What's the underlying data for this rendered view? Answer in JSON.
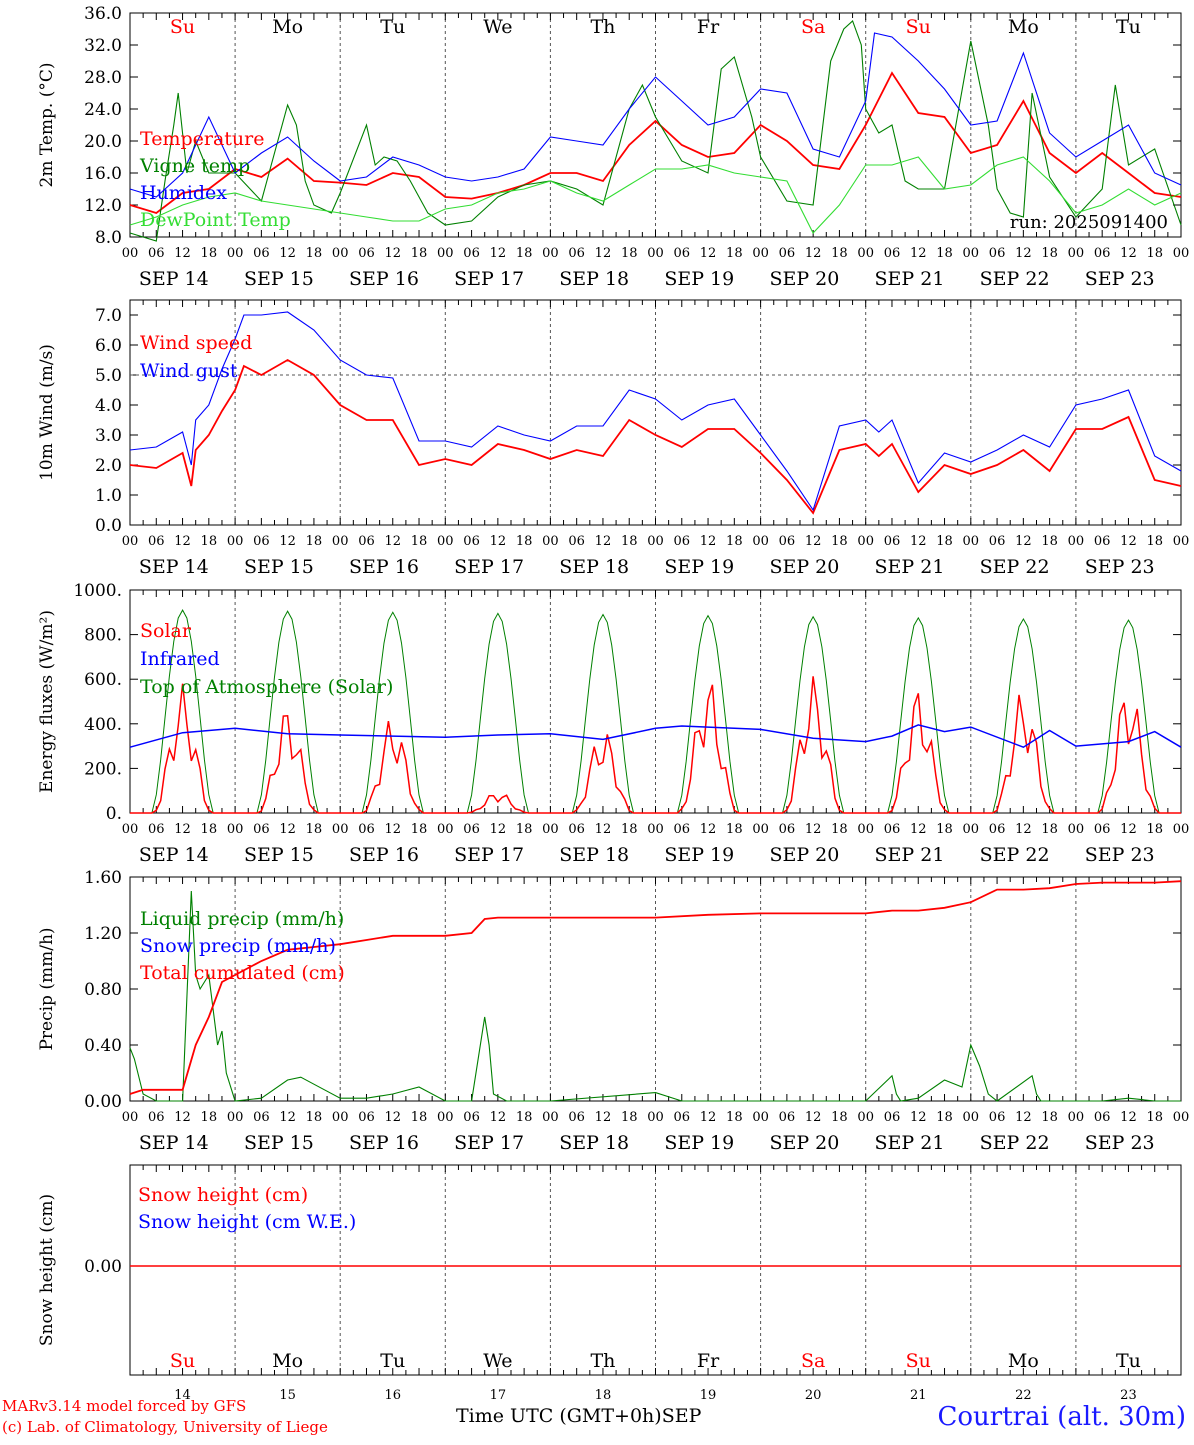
{
  "chart_data": [
    {
      "type": "line",
      "ylabel": "2m Temp. (°C)",
      "ylim": [
        8,
        36
      ],
      "ytick_labels": [
        "8.0",
        "12.0",
        "16.0",
        "20.0",
        "24.0",
        "28.0",
        "32.0",
        "36.0"
      ],
      "ytick_values": [
        8,
        12,
        16,
        20,
        24,
        28,
        32,
        36
      ],
      "annotation": "run: 2025091400",
      "day_letters": [
        "Su",
        "Mo",
        "Tu",
        "We",
        "Th",
        "Fr",
        "Sa",
        "Su",
        "Mo",
        "Tu"
      ],
      "day_letter_colors": [
        "#ff0000",
        "#000000",
        "#000000",
        "#000000",
        "#000000",
        "#000000",
        "#ff0000",
        "#ff0000",
        "#000000",
        "#000000"
      ],
      "x_unit": "hours since 2025-09-14 00 UTC",
      "series": [
        {
          "name": "Temperature",
          "color": "#ff0000",
          "x": [
            0,
            6,
            12,
            18,
            24,
            30,
            36,
            42,
            48,
            54,
            60,
            66,
            72,
            78,
            84,
            90,
            96,
            102,
            108,
            114,
            120,
            126,
            132,
            138,
            144,
            150,
            156,
            162,
            168,
            174,
            180,
            186,
            192,
            198,
            204,
            210,
            216,
            222,
            228,
            234,
            240
          ],
          "y": [
            12,
            11,
            13.5,
            14,
            16.5,
            15.5,
            17.8,
            15,
            14.8,
            14.5,
            16,
            15.5,
            13,
            12.8,
            13.5,
            14.5,
            16,
            16,
            15,
            19.5,
            22.5,
            19.5,
            18,
            18.5,
            22,
            20,
            17,
            16.5,
            22,
            28.5,
            23.5,
            23,
            18.5,
            19.5,
            25,
            18.5,
            16,
            18.5,
            16,
            13.5,
            13
          ]
        },
        {
          "name": "Vigne temp",
          "color": "#008000",
          "x": [
            0,
            6,
            8,
            10,
            11,
            13,
            15,
            18,
            24,
            30,
            36,
            38,
            40,
            42,
            46,
            48,
            54,
            56,
            58,
            61,
            64,
            68,
            72,
            78,
            84,
            90,
            96,
            102,
            108,
            114,
            117,
            120,
            126,
            132,
            135,
            138,
            142,
            144,
            150,
            156,
            160,
            163,
            165,
            167,
            168,
            171,
            174,
            177,
            180,
            186,
            192,
            196,
            198,
            201,
            204,
            206,
            210,
            216,
            222,
            225,
            228,
            234,
            240
          ],
          "y": [
            8.5,
            7.5,
            15,
            22,
            26,
            16,
            20,
            16,
            16,
            12.5,
            24.5,
            22,
            15,
            12,
            11,
            13.5,
            22,
            17,
            18,
            17.5,
            15,
            11,
            9.5,
            10,
            13,
            14.5,
            15,
            14,
            12,
            24,
            27,
            23,
            17.5,
            16,
            29,
            30.5,
            23,
            18,
            12.5,
            12,
            30,
            34,
            35,
            32,
            24,
            21,
            22,
            15,
            14,
            14,
            32.5,
            22,
            14,
            11,
            10.5,
            26,
            15.5,
            10.5,
            14,
            27,
            17,
            19,
            9.5
          ]
        },
        {
          "name": "Humidex",
          "color": "#0000ff",
          "x": [
            0,
            6,
            12,
            18,
            24,
            30,
            36,
            42,
            48,
            54,
            60,
            66,
            72,
            78,
            84,
            90,
            96,
            102,
            108,
            114,
            120,
            126,
            132,
            138,
            144,
            150,
            156,
            162,
            168,
            170,
            174,
            180,
            186,
            192,
            198,
            204,
            210,
            216,
            222,
            228,
            234,
            240
          ],
          "y": [
            14,
            13,
            16,
            23,
            16,
            18.5,
            20.5,
            17.5,
            15,
            15.5,
            18,
            17,
            15.5,
            15,
            15.5,
            16.5,
            20.5,
            20,
            19.5,
            24,
            28,
            25,
            22,
            23,
            26.5,
            26,
            19,
            18,
            25,
            33.5,
            33,
            30,
            26.5,
            22,
            22.5,
            31,
            21,
            18,
            20,
            22,
            16,
            14.5
          ]
        },
        {
          "name": "DewPoint Temp",
          "color": "#33dd33",
          "x": [
            0,
            6,
            12,
            18,
            24,
            30,
            36,
            42,
            48,
            54,
            60,
            66,
            72,
            78,
            84,
            90,
            96,
            102,
            108,
            114,
            120,
            126,
            132,
            138,
            144,
            150,
            156,
            162,
            168,
            174,
            180,
            186,
            192,
            198,
            204,
            210,
            216,
            222,
            228,
            234,
            240
          ],
          "y": [
            9.5,
            10.5,
            12,
            13,
            13.5,
            12.5,
            12,
            11.5,
            11,
            10.5,
            10,
            10,
            11.5,
            12,
            13.5,
            14,
            15,
            13.5,
            12.5,
            14.5,
            16.5,
            16.5,
            17,
            16,
            15.5,
            15,
            8.5,
            12,
            17,
            17,
            18,
            14,
            14.5,
            17,
            18,
            15,
            11,
            12,
            14,
            12,
            13.5
          ]
        }
      ],
      "legend": [
        "Temperature",
        "Vigne temp",
        "Humidex",
        "DewPoint Temp"
      ]
    },
    {
      "type": "line",
      "ylabel": "10m Wind (m/s)",
      "ylim": [
        0,
        7.5
      ],
      "ytick_labels": [
        "0.0",
        "1.0",
        "2.0",
        "3.0",
        "4.0",
        "5.0",
        "6.0",
        "7.0"
      ],
      "ytick_values": [
        0,
        1,
        2,
        3,
        4,
        5,
        6,
        7
      ],
      "reference_line": 5,
      "series": [
        {
          "name": "Wind speed",
          "color": "#ff0000",
          "x": [
            0,
            6,
            12,
            14,
            15,
            18,
            21,
            24,
            26,
            30,
            36,
            42,
            48,
            54,
            60,
            66,
            72,
            78,
            84,
            90,
            96,
            102,
            108,
            114,
            120,
            126,
            132,
            138,
            144,
            150,
            156,
            162,
            168,
            171,
            174,
            180,
            186,
            192,
            198,
            204,
            210,
            216,
            222,
            228,
            234,
            240
          ],
          "y": [
            2,
            1.9,
            2.4,
            1.3,
            2.5,
            3,
            3.8,
            4.5,
            5.3,
            5,
            5.5,
            5,
            4,
            3.5,
            3.5,
            2,
            2.2,
            2,
            2.7,
            2.5,
            2.2,
            2.5,
            2.3,
            3.5,
            3,
            2.6,
            3.2,
            3.2,
            2.4,
            1.5,
            0.4,
            2.5,
            2.7,
            2.3,
            2.7,
            1.1,
            2,
            1.7,
            2,
            2.5,
            1.8,
            3.2,
            3.2,
            3.6,
            1.5,
            1.3
          ]
        },
        {
          "name": "Wind gust",
          "color": "#0000ff",
          "x": [
            0,
            6,
            12,
            14,
            15,
            18,
            21,
            24,
            26,
            30,
            36,
            42,
            48,
            54,
            60,
            66,
            72,
            78,
            84,
            90,
            96,
            102,
            108,
            114,
            120,
            126,
            132,
            138,
            144,
            150,
            156,
            162,
            168,
            171,
            174,
            180,
            186,
            192,
            198,
            204,
            210,
            216,
            222,
            228,
            234,
            240
          ],
          "y": [
            2.5,
            2.6,
            3.1,
            2,
            3.5,
            4,
            5.2,
            6.2,
            7,
            7,
            7.1,
            6.5,
            5.5,
            5,
            4.9,
            2.8,
            2.8,
            2.6,
            3.3,
            3,
            2.8,
            3.3,
            3.3,
            4.5,
            4.2,
            3.5,
            4,
            4.2,
            3,
            1.8,
            0.5,
            3.3,
            3.5,
            3.1,
            3.5,
            1.4,
            2.4,
            2.1,
            2.5,
            3,
            2.6,
            4,
            4.2,
            4.5,
            2.3,
            1.8
          ]
        }
      ],
      "legend": [
        "Wind speed",
        "Wind gust"
      ]
    },
    {
      "type": "line",
      "ylabel": "Energy fluxes (W/m²)",
      "ylim": [
        0,
        1000
      ],
      "ytick_labels": [
        "0.",
        "200.",
        "400.",
        "600.",
        "800.",
        "1000."
      ],
      "ytick_values": [
        0,
        200,
        400,
        600,
        800,
        1000
      ],
      "top_of_atmosphere_peaks": [
        910,
        905,
        900,
        895,
        890,
        885,
        880,
        875,
        870,
        865
      ],
      "solar_peaks": [
        580,
        490,
        440,
        100,
        390,
        620,
        620,
        570,
        560,
        590
      ],
      "series": [
        {
          "name": "Solar",
          "color": "#ff0000"
        },
        {
          "name": "Infrared",
          "color": "#0000ff",
          "x": [
            0,
            12,
            24,
            36,
            48,
            60,
            72,
            84,
            96,
            108,
            120,
            126,
            132,
            144,
            156,
            168,
            174,
            180,
            186,
            192,
            204,
            210,
            216,
            228,
            234,
            240
          ],
          "y": [
            295,
            360,
            380,
            355,
            350,
            345,
            340,
            350,
            355,
            330,
            380,
            390,
            385,
            375,
            335,
            320,
            345,
            395,
            365,
            385,
            295,
            370,
            300,
            320,
            365,
            295
          ]
        },
        {
          "name": "Top of Atmosphere (Solar)",
          "color": "#008000"
        }
      ],
      "legend": [
        "Solar",
        "Infrared",
        "Top of Atmosphere (Solar)"
      ]
    },
    {
      "type": "line",
      "ylabel": "Precip (mm/h)",
      "ylim": [
        0,
        1.6
      ],
      "ytick_labels": [
        "0.00",
        "0.40",
        "0.80",
        "1.20",
        "1.60"
      ],
      "ytick_values": [
        0,
        0.4,
        0.8,
        1.2,
        1.6
      ],
      "series": [
        {
          "name": "Liquid precip (mm/h)",
          "color": "#008000",
          "x": [
            0,
            1,
            3,
            6,
            12,
            14,
            15,
            16,
            18,
            20,
            21,
            22,
            24,
            30,
            36,
            39,
            42,
            48,
            54,
            60,
            66,
            72,
            78,
            81,
            82,
            83,
            86,
            90,
            96,
            120,
            126,
            132,
            168,
            174,
            175,
            176,
            180,
            186,
            190,
            192,
            194,
            196,
            198,
            206,
            207,
            208,
            212,
            216,
            222,
            228,
            234,
            240
          ],
          "y": [
            0.38,
            0.3,
            0.05,
            0,
            0,
            1.5,
            0.9,
            0.8,
            0.9,
            0.4,
            0.5,
            0.2,
            0,
            0.02,
            0.15,
            0.17,
            0.12,
            0.02,
            0.02,
            0.05,
            0.1,
            0,
            0,
            0.6,
            0.4,
            0.05,
            0,
            0,
            0,
            0.06,
            0,
            0,
            0,
            0.18,
            0.05,
            0,
            0.02,
            0.15,
            0.1,
            0.4,
            0.25,
            0.05,
            0,
            0.18,
            0.05,
            0,
            0,
            0,
            0,
            0.02,
            0,
            0
          ]
        },
        {
          "name": "Snow precip (mm/h)",
          "color": "#0000ff"
        },
        {
          "name": "Total cumulated (cm)",
          "color": "#ff0000",
          "x": [
            0,
            3,
            12,
            15,
            18,
            21,
            24,
            30,
            36,
            42,
            48,
            54,
            60,
            66,
            72,
            78,
            81,
            84,
            96,
            108,
            120,
            132,
            144,
            156,
            168,
            174,
            180,
            186,
            192,
            198,
            204,
            210,
            216,
            222,
            228,
            234,
            240
          ],
          "y": [
            0.05,
            0.08,
            0.08,
            0.4,
            0.6,
            0.85,
            0.9,
            1,
            1.08,
            1.1,
            1.12,
            1.15,
            1.18,
            1.18,
            1.18,
            1.2,
            1.3,
            1.31,
            1.31,
            1.31,
            1.31,
            1.33,
            1.34,
            1.34,
            1.34,
            1.36,
            1.36,
            1.38,
            1.42,
            1.51,
            1.51,
            1.52,
            1.55,
            1.56,
            1.56,
            1.56,
            1.57
          ]
        }
      ],
      "legend": [
        "Liquid precip (mm/h)",
        "Snow precip (mm/h)",
        "Total cumulated (cm)"
      ]
    },
    {
      "type": "line",
      "ylabel": "Snow height (cm)",
      "ytick_labels": [
        "0.00"
      ],
      "ytick_values": [
        0
      ],
      "series": [
        {
          "name": "Snow height (cm)",
          "color": "#ff0000"
        },
        {
          "name": "Snow height (cm W.E.)",
          "color": "#0000ff"
        }
      ],
      "legend": [
        "Snow height (cm)",
        "Snow height (cm W.E.)"
      ],
      "day_letters": [
        "Su",
        "Mo",
        "Tu",
        "We",
        "Th",
        "Fr",
        "Sa",
        "Su",
        "Mo",
        "Tu"
      ],
      "day_letter_colors": [
        "#ff0000",
        "#000000",
        "#000000",
        "#000000",
        "#000000",
        "#000000",
        "#ff0000",
        "#ff0000",
        "#000000",
        "#000000"
      ],
      "day_numbers": [
        "14",
        "15",
        "16",
        "17",
        "18",
        "19",
        "20",
        "21",
        "22",
        "23"
      ]
    }
  ],
  "x_hour_labels": [
    "00",
    "06",
    "12",
    "18"
  ],
  "x_date_labels": [
    "SEP 14",
    "SEP 15",
    "SEP 16",
    "SEP 17",
    "SEP 18",
    "SEP 19",
    "SEP 20",
    "SEP 21",
    "SEP 22",
    "SEP 23"
  ],
  "footer": {
    "credit_line1": "MARv3.14 model forced by GFS",
    "credit_line2": "(c) Lab. of Climatology, University of Liege",
    "xlabel": "Time UTC (GMT+0h)",
    "month": "SEP",
    "location": "Courtrai (alt. 30m)"
  }
}
